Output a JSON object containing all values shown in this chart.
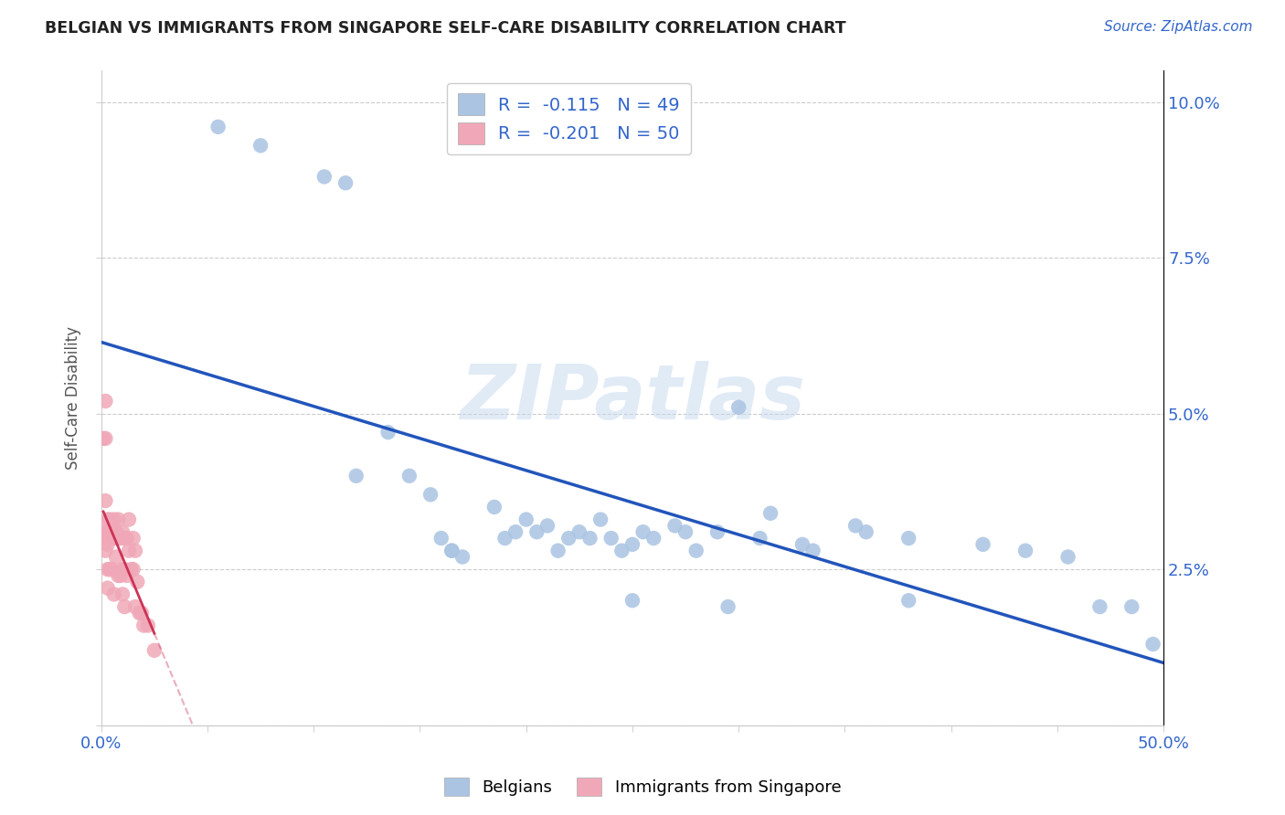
{
  "title": "BELGIAN VS IMMIGRANTS FROM SINGAPORE SELF-CARE DISABILITY CORRELATION CHART",
  "source": "Source: ZipAtlas.com",
  "ylabel": "Self-Care Disability",
  "xlim": [
    0.0,
    0.5
  ],
  "ylim": [
    0.0,
    0.105
  ],
  "yticks": [
    0.0,
    0.025,
    0.05,
    0.075,
    0.1
  ],
  "ytick_labels": [
    "",
    "2.5%",
    "5.0%",
    "7.5%",
    "10.0%"
  ],
  "xticks": [
    0.0,
    0.05,
    0.1,
    0.15,
    0.2,
    0.25,
    0.3,
    0.35,
    0.4,
    0.45,
    0.5
  ],
  "xtick_labels": [
    "0.0%",
    "",
    "",
    "",
    "",
    "",
    "",
    "",
    "",
    "",
    "50.0%"
  ],
  "blue_R": "-0.115",
  "blue_N": "49",
  "pink_R": "-0.201",
  "pink_N": "50",
  "blue_color": "#aac4e2",
  "pink_color": "#f0a8b8",
  "blue_line_color": "#2255bb",
  "pink_line_color": "#cc3355",
  "watermark": "ZIPatlas",
  "legend_label_blue": "Belgians",
  "legend_label_pink": "Immigrants from Singapore",
  "blue_scatter_x": [
    0.055,
    0.075,
    0.105,
    0.115,
    0.135,
    0.145,
    0.155,
    0.16,
    0.165,
    0.17,
    0.185,
    0.19,
    0.195,
    0.2,
    0.205,
    0.21,
    0.215,
    0.22,
    0.225,
    0.23,
    0.235,
    0.24,
    0.245,
    0.25,
    0.255,
    0.26,
    0.27,
    0.275,
    0.28,
    0.29,
    0.295,
    0.31,
    0.315,
    0.33,
    0.335,
    0.355,
    0.36,
    0.38,
    0.415,
    0.435,
    0.455,
    0.47,
    0.485,
    0.495,
    0.38,
    0.3,
    0.25,
    0.165,
    0.12
  ],
  "blue_scatter_y": [
    0.096,
    0.093,
    0.088,
    0.087,
    0.047,
    0.04,
    0.037,
    0.03,
    0.028,
    0.027,
    0.035,
    0.03,
    0.031,
    0.033,
    0.031,
    0.032,
    0.028,
    0.03,
    0.031,
    0.03,
    0.033,
    0.03,
    0.028,
    0.029,
    0.031,
    0.03,
    0.032,
    0.031,
    0.028,
    0.031,
    0.019,
    0.03,
    0.034,
    0.029,
    0.028,
    0.032,
    0.031,
    0.03,
    0.029,
    0.028,
    0.027,
    0.019,
    0.019,
    0.013,
    0.02,
    0.051,
    0.02,
    0.028,
    0.04
  ],
  "pink_scatter_x": [
    0.002,
    0.002,
    0.002,
    0.002,
    0.002,
    0.003,
    0.003,
    0.003,
    0.003,
    0.003,
    0.004,
    0.004,
    0.004,
    0.004,
    0.005,
    0.005,
    0.005,
    0.006,
    0.006,
    0.006,
    0.007,
    0.007,
    0.008,
    0.008,
    0.008,
    0.009,
    0.009,
    0.01,
    0.01,
    0.01,
    0.011,
    0.011,
    0.011,
    0.012,
    0.012,
    0.013,
    0.013,
    0.014,
    0.015,
    0.015,
    0.016,
    0.016,
    0.017,
    0.018,
    0.019,
    0.02,
    0.022,
    0.025,
    0.001,
    0.001
  ],
  "pink_scatter_y": [
    0.052,
    0.046,
    0.036,
    0.031,
    0.028,
    0.033,
    0.031,
    0.029,
    0.025,
    0.022,
    0.033,
    0.031,
    0.03,
    0.025,
    0.032,
    0.03,
    0.025,
    0.033,
    0.03,
    0.021,
    0.031,
    0.027,
    0.033,
    0.03,
    0.024,
    0.03,
    0.024,
    0.031,
    0.025,
    0.021,
    0.03,
    0.025,
    0.019,
    0.03,
    0.024,
    0.033,
    0.028,
    0.025,
    0.025,
    0.03,
    0.028,
    0.019,
    0.023,
    0.018,
    0.018,
    0.016,
    0.016,
    0.012,
    0.046,
    0.03
  ]
}
